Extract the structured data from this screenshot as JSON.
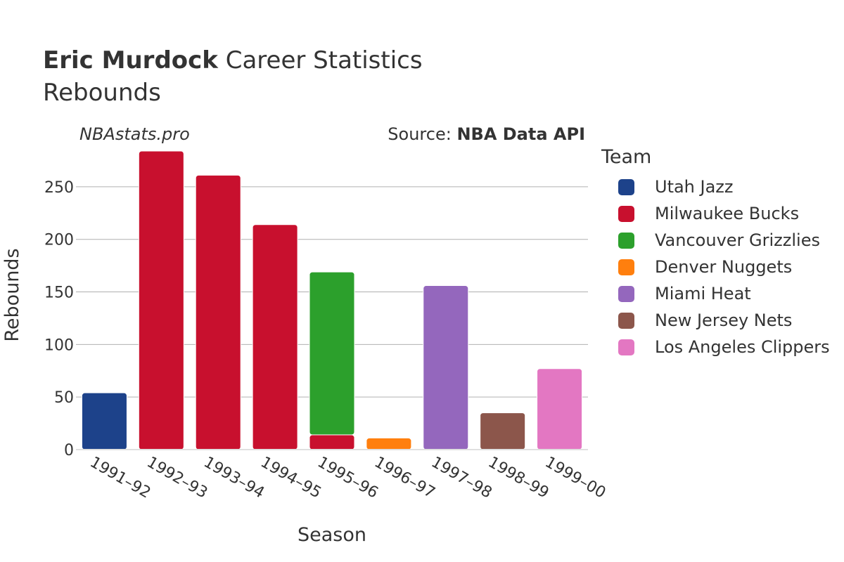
{
  "header": {
    "title_bold": "Eric Murdock",
    "title_rest": " Career Statistics",
    "subtitle": "Rebounds",
    "watermark": "NBAstats.pro",
    "source_prefix": "Source: ",
    "source_name": "NBA Data API"
  },
  "legend": {
    "title": "Team",
    "items": [
      {
        "label": "Utah Jazz",
        "color": "#1d428a"
      },
      {
        "label": "Milwaukee Bucks",
        "color": "#c8102e"
      },
      {
        "label": "Vancouver Grizzlies",
        "color": "#2ca02c"
      },
      {
        "label": "Denver Nuggets",
        "color": "#ff7f0e"
      },
      {
        "label": "Miami Heat",
        "color": "#9467bd"
      },
      {
        "label": "New Jersey Nets",
        "color": "#8c564b"
      },
      {
        "label": "Los Angeles Clippers",
        "color": "#e377c2"
      }
    ]
  },
  "chart_data": {
    "type": "bar",
    "stacked": true,
    "xlabel": "Season",
    "ylabel": "Rebounds",
    "ylim": [
      0,
      290
    ],
    "yticks": [
      0,
      50,
      100,
      150,
      200,
      250
    ],
    "grid": true,
    "legend_position": "right",
    "categories": [
      "1991–92",
      "1992–93",
      "1993–94",
      "1994–95",
      "1995–96",
      "1996–97",
      "1997–98",
      "1998–99",
      "1999–00"
    ],
    "series": [
      {
        "name": "Utah Jazz",
        "color": "#1d428a",
        "values": [
          54,
          0,
          0,
          0,
          0,
          0,
          0,
          0,
          0
        ]
      },
      {
        "name": "Milwaukee Bucks",
        "color": "#c8102e",
        "values": [
          0,
          284,
          261,
          214,
          14,
          0,
          0,
          0,
          0
        ]
      },
      {
        "name": "Vancouver Grizzlies",
        "color": "#2ca02c",
        "values": [
          0,
          0,
          0,
          0,
          155,
          0,
          0,
          0,
          0
        ]
      },
      {
        "name": "Denver Nuggets",
        "color": "#ff7f0e",
        "values": [
          0,
          0,
          0,
          0,
          0,
          11,
          0,
          0,
          0
        ]
      },
      {
        "name": "Miami Heat",
        "color": "#9467bd",
        "values": [
          0,
          0,
          0,
          0,
          0,
          0,
          156,
          0,
          0
        ]
      },
      {
        "name": "New Jersey Nets",
        "color": "#8c564b",
        "values": [
          0,
          0,
          0,
          0,
          0,
          0,
          0,
          35,
          0
        ]
      },
      {
        "name": "Los Angeles Clippers",
        "color": "#e377c2",
        "values": [
          0,
          0,
          0,
          0,
          0,
          0,
          0,
          0,
          77
        ]
      }
    ]
  }
}
